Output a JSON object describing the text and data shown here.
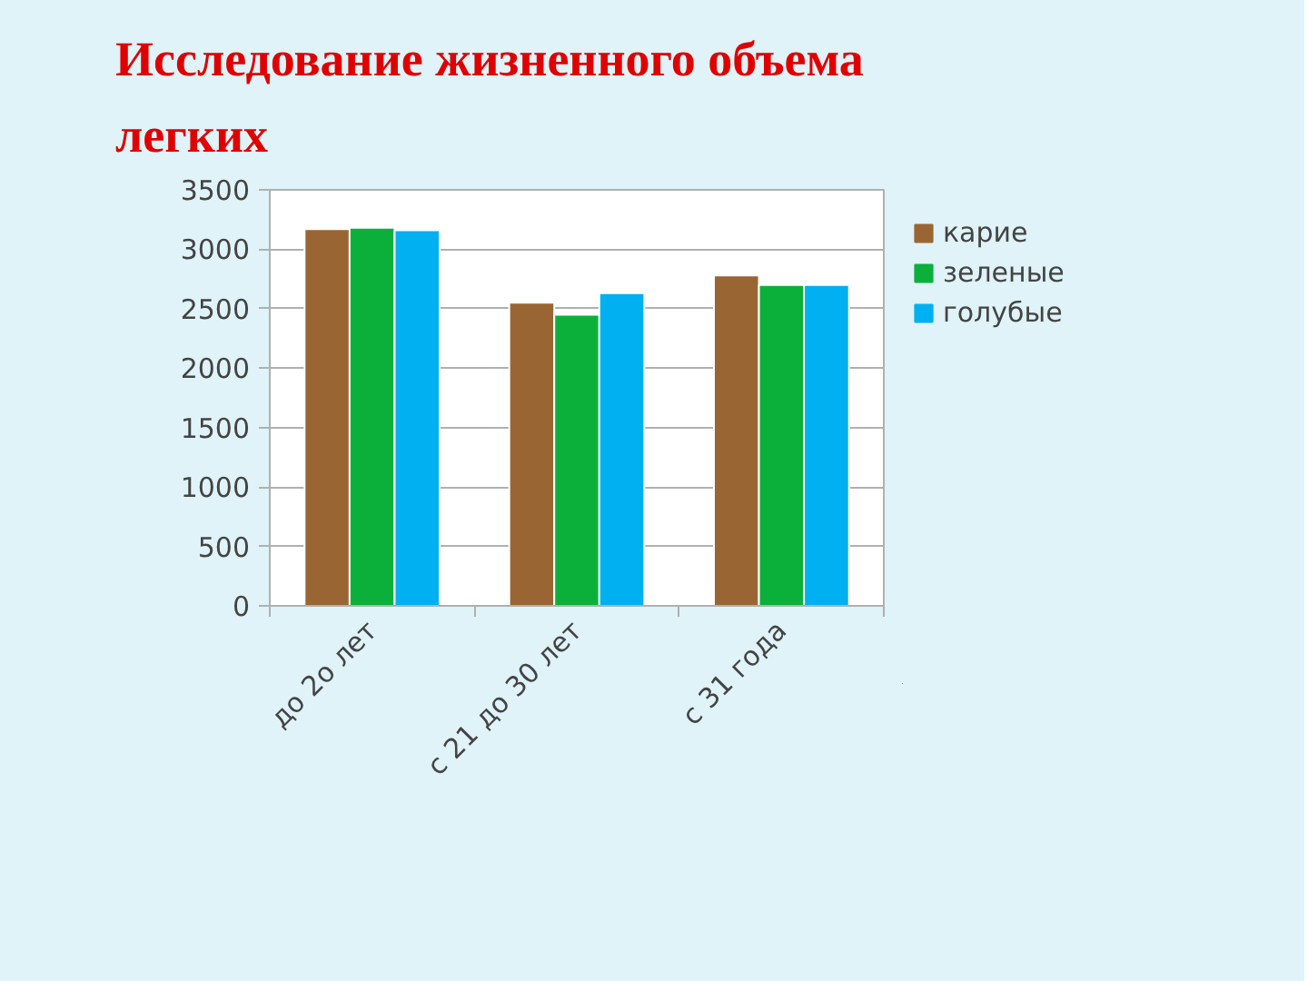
{
  "chart_data": {
    "type": "bar",
    "title": "Исследование жизненного объема легких",
    "categories": [
      "до 2о лет",
      "с 21 до 30 лет",
      "с 31 года"
    ],
    "series": [
      {
        "name": "карие",
        "color": "#996633",
        "values": [
          3170,
          2550,
          2780
        ]
      },
      {
        "name": "зеленые",
        "color": "#0bb03b",
        "values": [
          3180,
          2450,
          2700
        ]
      },
      {
        "name": "голубые",
        "color": "#00b0f0",
        "values": [
          3160,
          2630,
          2700
        ]
      }
    ],
    "ylim": [
      0,
      3500
    ],
    "yticks": [
      0,
      500,
      1000,
      1500,
      2000,
      2500,
      3000,
      3500
    ],
    "grid": "y",
    "legend": "right"
  }
}
